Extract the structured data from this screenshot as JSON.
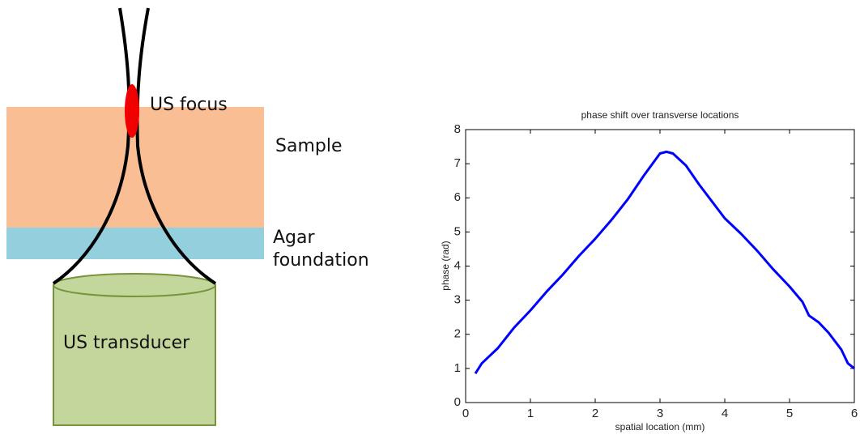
{
  "diagram": {
    "focus": "US focus",
    "sample": "Sample",
    "agar": [
      "Agar",
      "foundation"
    ],
    "transducer": "US transducer"
  },
  "chart_data": {
    "type": "line",
    "title": "phase shift over transverse locations",
    "x_label": "spatial location (mm)",
    "y_label": "phase (rad)",
    "x": [
      0.15,
      0.25,
      0.5,
      0.75,
      1.0,
      1.25,
      1.5,
      1.75,
      2.0,
      2.25,
      2.5,
      2.75,
      3.0,
      3.1,
      3.2,
      3.4,
      3.6,
      3.8,
      4.0,
      4.25,
      4.5,
      4.75,
      5.0,
      5.2,
      5.3,
      5.45,
      5.6,
      5.8,
      5.9,
      6.0
    ],
    "series": [
      {
        "color": "#0000ff",
        "values": [
          0.85,
          1.15,
          1.6,
          2.2,
          2.7,
          3.25,
          3.75,
          4.3,
          4.8,
          5.35,
          5.95,
          6.65,
          7.3,
          7.35,
          7.3,
          6.95,
          6.4,
          5.9,
          5.4,
          4.95,
          4.45,
          3.9,
          3.4,
          2.95,
          2.55,
          2.35,
          2.05,
          1.55,
          1.15,
          1.0
        ]
      }
    ],
    "xlim": [
      0,
      6
    ],
    "ylim": [
      0,
      8
    ],
    "xticks": [
      0,
      1,
      2,
      3,
      4,
      5,
      6
    ],
    "yticks": [
      0,
      1,
      2,
      3,
      4,
      5,
      6,
      7,
      8
    ],
    "grid": false
  }
}
